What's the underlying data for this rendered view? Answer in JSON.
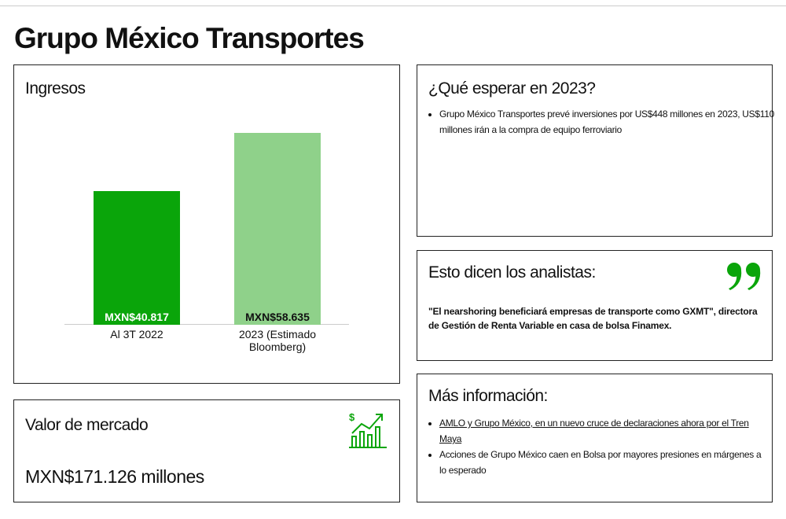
{
  "header": {
    "title": "Grupo México Transportes"
  },
  "ingresos": {
    "type": "bar",
    "title": "Ingresos",
    "categories": [
      "Al 3T 2022",
      "2023 (Estimado Bloomberg)"
    ],
    "values": [
      40.817,
      58.635
    ],
    "value_labels": [
      "MXN$40.817",
      "MXN$58.635"
    ],
    "colors": [
      "#0aa50a",
      "#8fd18a"
    ]
  },
  "valor_mercado": {
    "title": "Valor de mercado",
    "value": "MXN$171.126 millones"
  },
  "que_esperar": {
    "title": "¿Qué esperar en 2023?",
    "bullets": [
      "Grupo México Transportes prevé inversiones por US$448 millones en 2023, US$110 millones irán a la compra de equipo ferroviario"
    ]
  },
  "analistas": {
    "title": "Esto dicen los analistas:",
    "quote": "\"El nearshoring beneficiará empresas de transporte como GXMT\", directora de Gestión de Renta Variable en casa de bolsa Finamex."
  },
  "mas_informacion": {
    "title": "Más información:",
    "items": [
      {
        "text": "AMLO y Grupo México, en un nuevo cruce de declaraciones ahora por el Tren Maya",
        "link": true
      },
      {
        "text": "Acciones de Grupo México caen en Bolsa por mayores presiones en márgenes a lo esperado",
        "link": false
      }
    ]
  }
}
